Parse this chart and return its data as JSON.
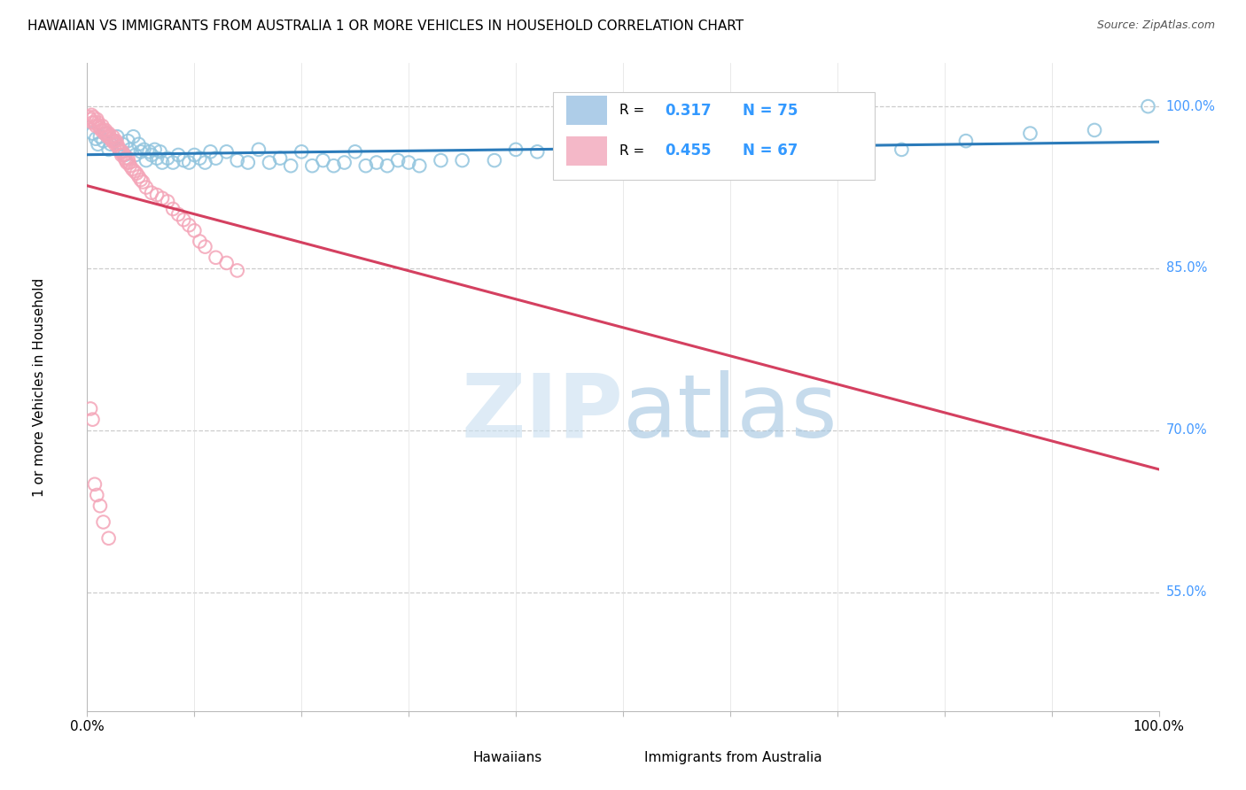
{
  "title": "HAWAIIAN VS IMMIGRANTS FROM AUSTRALIA 1 OR MORE VEHICLES IN HOUSEHOLD CORRELATION CHART",
  "source": "Source: ZipAtlas.com",
  "ylabel": "1 or more Vehicles in Household",
  "ytick_labels": [
    "100.0%",
    "85.0%",
    "70.0%",
    "55.0%"
  ],
  "ytick_values": [
    1.0,
    0.85,
    0.7,
    0.55
  ],
  "xlim": [
    0.0,
    1.0
  ],
  "ylim": [
    0.44,
    1.04
  ],
  "legend_r1_val": "0.317",
  "legend_n1": "N = 75",
  "legend_r2_val": "0.455",
  "legend_n2": "N = 67",
  "blue_color": "#92c5de",
  "pink_color": "#f4a5b8",
  "line_color": "#2b7bba",
  "pink_line_color": "#d44060",
  "title_fontsize": 11,
  "source_fontsize": 9,
  "hawaiians_x": [
    0.005,
    0.008,
    0.01,
    0.012,
    0.015,
    0.018,
    0.02,
    0.022,
    0.025,
    0.028,
    0.03,
    0.033,
    0.035,
    0.038,
    0.04,
    0.043,
    0.045,
    0.048,
    0.05,
    0.053,
    0.055,
    0.058,
    0.06,
    0.063,
    0.065,
    0.068,
    0.07,
    0.075,
    0.08,
    0.085,
    0.09,
    0.095,
    0.1,
    0.105,
    0.11,
    0.115,
    0.12,
    0.13,
    0.14,
    0.15,
    0.16,
    0.17,
    0.18,
    0.19,
    0.2,
    0.21,
    0.22,
    0.23,
    0.24,
    0.25,
    0.26,
    0.27,
    0.28,
    0.29,
    0.3,
    0.31,
    0.33,
    0.35,
    0.38,
    0.4,
    0.42,
    0.45,
    0.48,
    0.5,
    0.53,
    0.57,
    0.6,
    0.64,
    0.68,
    0.72,
    0.76,
    0.82,
    0.88,
    0.94,
    0.99
  ],
  "hawaiians_y": [
    0.975,
    0.97,
    0.965,
    0.972,
    0.968,
    0.975,
    0.96,
    0.965,
    0.968,
    0.972,
    0.96,
    0.965,
    0.955,
    0.968,
    0.96,
    0.972,
    0.955,
    0.965,
    0.958,
    0.96,
    0.95,
    0.958,
    0.955,
    0.96,
    0.952,
    0.958,
    0.948,
    0.952,
    0.948,
    0.955,
    0.95,
    0.948,
    0.955,
    0.952,
    0.948,
    0.958,
    0.952,
    0.958,
    0.95,
    0.948,
    0.96,
    0.948,
    0.952,
    0.945,
    0.958,
    0.945,
    0.95,
    0.945,
    0.948,
    0.958,
    0.945,
    0.948,
    0.945,
    0.95,
    0.948,
    0.945,
    0.95,
    0.95,
    0.95,
    0.96,
    0.958,
    0.955,
    0.96,
    0.96,
    0.958,
    0.965,
    0.96,
    0.96,
    0.968,
    0.965,
    0.96,
    0.968,
    0.975,
    0.978,
    1.0
  ],
  "immigrants_x": [
    0.002,
    0.003,
    0.004,
    0.005,
    0.006,
    0.007,
    0.008,
    0.009,
    0.01,
    0.011,
    0.012,
    0.013,
    0.014,
    0.015,
    0.016,
    0.017,
    0.018,
    0.019,
    0.02,
    0.021,
    0.022,
    0.023,
    0.024,
    0.025,
    0.026,
    0.027,
    0.028,
    0.029,
    0.03,
    0.031,
    0.032,
    0.033,
    0.034,
    0.035,
    0.036,
    0.037,
    0.038,
    0.039,
    0.04,
    0.042,
    0.044,
    0.046,
    0.048,
    0.05,
    0.052,
    0.055,
    0.06,
    0.065,
    0.07,
    0.075,
    0.08,
    0.085,
    0.09,
    0.095,
    0.1,
    0.105,
    0.11,
    0.12,
    0.13,
    0.14,
    0.003,
    0.005,
    0.007,
    0.009,
    0.012,
    0.015,
    0.02
  ],
  "immigrants_y": [
    0.99,
    0.988,
    0.992,
    0.985,
    0.99,
    0.985,
    0.982,
    0.988,
    0.985,
    0.982,
    0.98,
    0.978,
    0.982,
    0.978,
    0.975,
    0.978,
    0.975,
    0.972,
    0.975,
    0.972,
    0.97,
    0.968,
    0.972,
    0.968,
    0.965,
    0.968,
    0.965,
    0.962,
    0.96,
    0.958,
    0.955,
    0.958,
    0.955,
    0.952,
    0.95,
    0.948,
    0.952,
    0.948,
    0.945,
    0.942,
    0.94,
    0.938,
    0.935,
    0.932,
    0.93,
    0.925,
    0.92,
    0.918,
    0.915,
    0.912,
    0.905,
    0.9,
    0.895,
    0.89,
    0.885,
    0.875,
    0.87,
    0.86,
    0.855,
    0.848,
    0.72,
    0.71,
    0.65,
    0.64,
    0.63,
    0.615,
    0.6
  ]
}
